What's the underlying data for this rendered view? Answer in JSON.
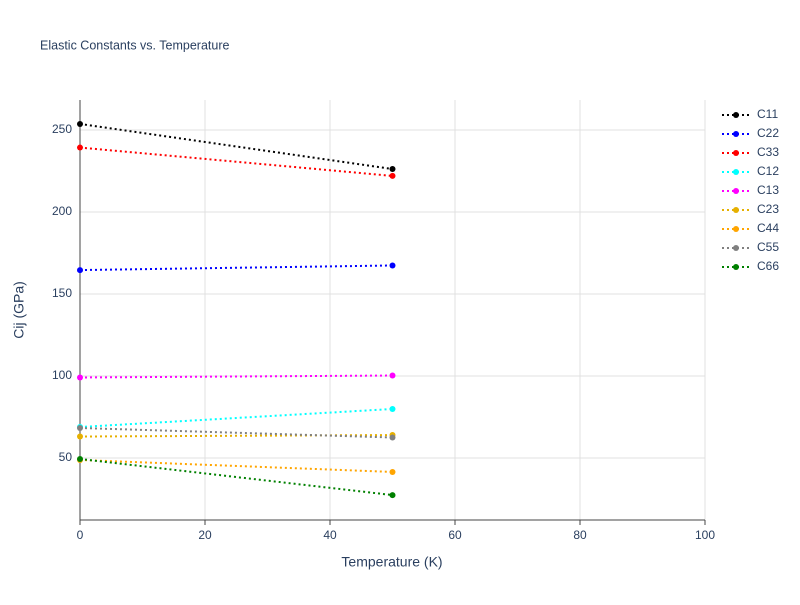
{
  "chart_data": {
    "type": "line",
    "title": "Elastic Constants vs. Temperature",
    "x_label": "Temperature (K)",
    "y_label": "Cij (GPa)",
    "x": [
      0,
      50
    ],
    "series": [
      {
        "name": "C11",
        "color": "#000000",
        "values": [
          253.7,
          226.2
        ]
      },
      {
        "name": "C22",
        "color": "#0000ff",
        "values": [
          164.6,
          167.4
        ]
      },
      {
        "name": "C33",
        "color": "#ff0000",
        "values": [
          239.3,
          222.0
        ]
      },
      {
        "name": "C12",
        "color": "#00ffff",
        "values": [
          68.9,
          79.9
        ]
      },
      {
        "name": "C13",
        "color": "#ff00ff",
        "values": [
          99.1,
          100.3
        ]
      },
      {
        "name": "C23",
        "color": "#e6b000",
        "values": [
          63.1,
          64.0
        ]
      },
      {
        "name": "C44",
        "color": "#ffa500",
        "values": [
          48.8,
          41.5
        ]
      },
      {
        "name": "C55",
        "color": "#808080",
        "values": [
          68.3,
          62.5
        ]
      },
      {
        "name": "C66",
        "color": "#008000",
        "values": [
          49.4,
          27.4
        ]
      }
    ],
    "xlim": [
      0,
      100
    ],
    "xticks": [
      0,
      20,
      40,
      60,
      80,
      100
    ],
    "ylim": [
      12.2,
      268.3
    ],
    "yticks": [
      50,
      100,
      150,
      200,
      250
    ],
    "grid": true,
    "legend": "right",
    "line_style": "dotted"
  }
}
